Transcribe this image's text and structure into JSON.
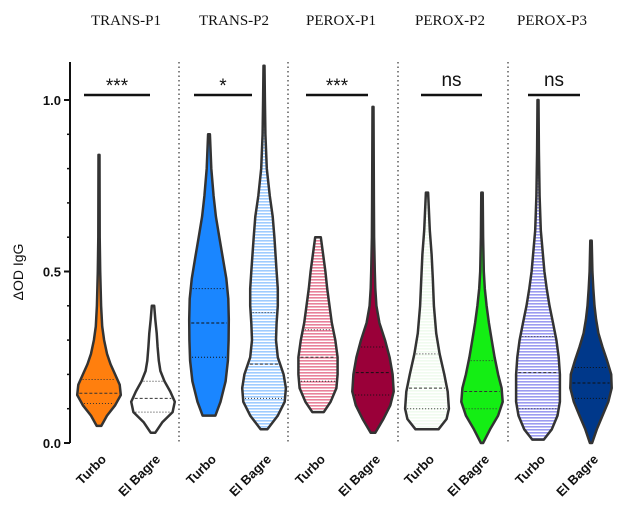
{
  "chart_data": {
    "type": "violin",
    "ylabel": "ΔOD  IgG",
    "ylim": [
      0.0,
      1.1
    ],
    "yticks": [
      "0.0",
      "0.5",
      "1.0"
    ],
    "grid": false,
    "panels": [
      {
        "title": "TRANS-P1",
        "significance": "***",
        "groups": [
          {
            "name": "Turbo",
            "color": "#ff7f0e",
            "fill": "solid",
            "min": 0.05,
            "max": 0.84,
            "median": 0.145,
            "q1": 0.115,
            "q3": 0.185,
            "profile": [
              [
                0.05,
                0.1
              ],
              [
                0.08,
                0.35
              ],
              [
                0.11,
                0.7
              ],
              [
                0.14,
                0.95
              ],
              [
                0.17,
                0.9
              ],
              [
                0.2,
                0.7
              ],
              [
                0.23,
                0.5
              ],
              [
                0.26,
                0.35
              ],
              [
                0.3,
                0.22
              ],
              [
                0.34,
                0.14
              ],
              [
                0.4,
                0.09
              ],
              [
                0.5,
                0.05
              ],
              [
                0.6,
                0.03
              ],
              [
                0.84,
                0.02
              ]
            ]
          },
          {
            "name": "El Bagre",
            "color": "#ffffff",
            "fill": "solid",
            "min": 0.03,
            "max": 0.4,
            "median": 0.13,
            "q1": 0.09,
            "q3": 0.18,
            "profile": [
              [
                0.03,
                0.1
              ],
              [
                0.06,
                0.4
              ],
              [
                0.09,
                0.85
              ],
              [
                0.12,
                0.95
              ],
              [
                0.15,
                0.75
              ],
              [
                0.18,
                0.5
              ],
              [
                0.21,
                0.32
              ],
              [
                0.24,
                0.25
              ],
              [
                0.28,
                0.2
              ],
              [
                0.32,
                0.16
              ],
              [
                0.36,
                0.1
              ],
              [
                0.4,
                0.05
              ]
            ]
          }
        ]
      },
      {
        "title": "TRANS-P2",
        "significance": "*",
        "groups": [
          {
            "name": "Turbo",
            "color": "#1a86ff",
            "fill": "solid",
            "min": 0.08,
            "max": 0.9,
            "median": 0.35,
            "q1": 0.25,
            "q3": 0.45,
            "profile": [
              [
                0.08,
                0.28
              ],
              [
                0.12,
                0.5
              ],
              [
                0.18,
                0.72
              ],
              [
                0.24,
                0.82
              ],
              [
                0.3,
                0.85
              ],
              [
                0.36,
                0.86
              ],
              [
                0.42,
                0.84
              ],
              [
                0.48,
                0.75
              ],
              [
                0.54,
                0.6
              ],
              [
                0.6,
                0.45
              ],
              [
                0.66,
                0.3
              ],
              [
                0.72,
                0.2
              ],
              [
                0.8,
                0.1
              ],
              [
                0.9,
                0.04
              ]
            ]
          },
          {
            "name": "El Bagre",
            "color": "#9fccff",
            "fill": "striped",
            "min": 0.04,
            "max": 1.1,
            "median": 0.23,
            "q1": 0.13,
            "q3": 0.38,
            "profile": [
              [
                0.04,
                0.15
              ],
              [
                0.08,
                0.6
              ],
              [
                0.12,
                0.9
              ],
              [
                0.16,
                0.95
              ],
              [
                0.2,
                0.85
              ],
              [
                0.25,
                0.6
              ],
              [
                0.3,
                0.52
              ],
              [
                0.35,
                0.55
              ],
              [
                0.4,
                0.6
              ],
              [
                0.45,
                0.6
              ],
              [
                0.5,
                0.55
              ],
              [
                0.55,
                0.5
              ],
              [
                0.6,
                0.45
              ],
              [
                0.66,
                0.38
              ],
              [
                0.72,
                0.25
              ],
              [
                0.8,
                0.12
              ],
              [
                0.9,
                0.06
              ],
              [
                1.0,
                0.04
              ],
              [
                1.1,
                0.02
              ]
            ]
          }
        ]
      },
      {
        "title": "PEROX-P1",
        "significance": "***",
        "groups": [
          {
            "name": "Turbo",
            "color": "#e8819a",
            "fill": "striped",
            "min": 0.09,
            "max": 0.6,
            "median": 0.25,
            "q1": 0.18,
            "q3": 0.33,
            "profile": [
              [
                0.09,
                0.25
              ],
              [
                0.12,
                0.55
              ],
              [
                0.16,
                0.8
              ],
              [
                0.2,
                0.85
              ],
              [
                0.25,
                0.85
              ],
              [
                0.3,
                0.75
              ],
              [
                0.35,
                0.6
              ],
              [
                0.4,
                0.5
              ],
              [
                0.45,
                0.4
              ],
              [
                0.5,
                0.32
              ],
              [
                0.55,
                0.22
              ],
              [
                0.6,
                0.12
              ]
            ]
          },
          {
            "name": "El Bagre",
            "color": "#9a0039",
            "fill": "solid",
            "min": 0.03,
            "max": 0.98,
            "median": 0.205,
            "q1": 0.14,
            "q3": 0.28,
            "profile": [
              [
                0.03,
                0.1
              ],
              [
                0.07,
                0.45
              ],
              [
                0.11,
                0.75
              ],
              [
                0.15,
                0.9
              ],
              [
                0.2,
                0.85
              ],
              [
                0.25,
                0.72
              ],
              [
                0.3,
                0.52
              ],
              [
                0.35,
                0.28
              ],
              [
                0.4,
                0.15
              ],
              [
                0.45,
                0.1
              ],
              [
                0.5,
                0.08
              ],
              [
                0.6,
                0.05
              ],
              [
                0.7,
                0.04
              ],
              [
                0.98,
                0.02
              ]
            ]
          }
        ]
      },
      {
        "title": "PEROX-P2",
        "significance": "ns",
        "groups": [
          {
            "name": "Turbo",
            "color": "#f0fbef",
            "fill": "striped",
            "min": 0.04,
            "max": 0.73,
            "median": 0.16,
            "q1": 0.1,
            "q3": 0.26,
            "profile": [
              [
                0.04,
                0.5
              ],
              [
                0.07,
                0.85
              ],
              [
                0.1,
                0.95
              ],
              [
                0.15,
                0.9
              ],
              [
                0.2,
                0.75
              ],
              [
                0.26,
                0.55
              ],
              [
                0.32,
                0.4
              ],
              [
                0.4,
                0.3
              ],
              [
                0.48,
                0.25
              ],
              [
                0.55,
                0.2
              ],
              [
                0.62,
                0.12
              ],
              [
                0.73,
                0.05
              ]
            ]
          },
          {
            "name": "El Bagre",
            "color": "#14ee14",
            "fill": "solid",
            "min": 0.0,
            "max": 0.73,
            "median": 0.15,
            "q1": 0.1,
            "q3": 0.24,
            "profile": [
              [
                0.0,
                0.05
              ],
              [
                0.04,
                0.35
              ],
              [
                0.08,
                0.7
              ],
              [
                0.12,
                0.9
              ],
              [
                0.16,
                0.85
              ],
              [
                0.2,
                0.7
              ],
              [
                0.25,
                0.55
              ],
              [
                0.3,
                0.42
              ],
              [
                0.35,
                0.3
              ],
              [
                0.4,
                0.2
              ],
              [
                0.45,
                0.12
              ],
              [
                0.5,
                0.08
              ],
              [
                0.6,
                0.05
              ],
              [
                0.73,
                0.03
              ]
            ]
          }
        ]
      },
      {
        "title": "PEROX-P3",
        "significance": "ns",
        "groups": [
          {
            "name": "Turbo",
            "color": "#9b9bf0",
            "fill": "striped",
            "min": 0.01,
            "max": 1.0,
            "median": 0.205,
            "q1": 0.1,
            "q3": 0.31,
            "profile": [
              [
                0.01,
                0.25
              ],
              [
                0.04,
                0.6
              ],
              [
                0.08,
                0.85
              ],
              [
                0.12,
                0.95
              ],
              [
                0.16,
                0.95
              ],
              [
                0.2,
                0.95
              ],
              [
                0.25,
                0.9
              ],
              [
                0.3,
                0.8
              ],
              [
                0.35,
                0.65
              ],
              [
                0.4,
                0.5
              ],
              [
                0.45,
                0.38
              ],
              [
                0.5,
                0.28
              ],
              [
                0.56,
                0.2
              ],
              [
                0.62,
                0.12
              ],
              [
                0.72,
                0.07
              ],
              [
                0.85,
                0.04
              ],
              [
                1.0,
                0.02
              ]
            ]
          },
          {
            "name": "El Bagre",
            "color": "#00388a",
            "fill": "solid",
            "min": 0.0,
            "max": 0.59,
            "median": 0.175,
            "q1": 0.13,
            "q3": 0.22,
            "profile": [
              [
                0.0,
                0.05
              ],
              [
                0.04,
                0.25
              ],
              [
                0.08,
                0.5
              ],
              [
                0.12,
                0.75
              ],
              [
                0.16,
                0.9
              ],
              [
                0.2,
                0.88
              ],
              [
                0.24,
                0.7
              ],
              [
                0.28,
                0.5
              ],
              [
                0.32,
                0.32
              ],
              [
                0.36,
                0.22
              ],
              [
                0.4,
                0.15
              ],
              [
                0.45,
                0.1
              ],
              [
                0.5,
                0.06
              ],
              [
                0.59,
                0.03
              ]
            ]
          }
        ]
      }
    ]
  }
}
